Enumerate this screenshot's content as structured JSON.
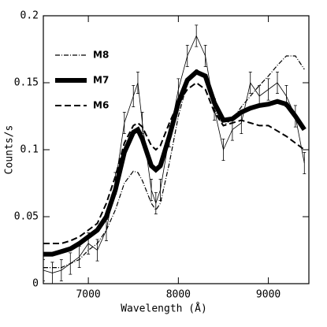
{
  "chart_data": {
    "type": "line",
    "xlabel": "Wavelength (Å)",
    "ylabel": "Counts/s",
    "xlim": [
      6500,
      9450
    ],
    "xticks": [
      7000,
      8000,
      9000
    ],
    "ylim": [
      0,
      0.2
    ],
    "yticks": [
      0,
      0.05,
      0.1,
      0.15,
      0.2
    ],
    "legend": "upper left",
    "x": [
      6500,
      6600,
      6700,
      6800,
      6900,
      7000,
      7100,
      7200,
      7300,
      7400,
      7500,
      7550,
      7600,
      7700,
      7750,
      7800,
      7900,
      8000,
      8100,
      8200,
      8300,
      8400,
      8500,
      8600,
      8700,
      8800,
      8900,
      9000,
      9100,
      9200,
      9300,
      9400
    ],
    "series": [
      {
        "color": "#000000",
        "style": "points",
        "values": [
          0.01,
          0.008,
          0.01,
          0.015,
          0.02,
          0.03,
          0.025,
          0.04,
          0.075,
          0.12,
          0.14,
          0.15,
          0.12,
          0.07,
          0.06,
          0.07,
          0.11,
          0.145,
          0.17,
          0.185,
          0.17,
          0.13,
          0.1,
          0.115,
          0.12,
          0.15,
          0.14,
          0.145,
          0.15,
          0.14,
          0.125,
          0.09
        ],
        "errors": [
          0.008,
          0.008,
          0.008,
          0.008,
          0.008,
          0.008,
          0.008,
          0.008,
          0.008,
          0.008,
          0.008,
          0.008,
          0.008,
          0.008,
          0.008,
          0.008,
          0.008,
          0.008,
          0.008,
          0.008,
          0.008,
          0.008,
          0.008,
          0.008,
          0.008,
          0.008,
          0.008,
          0.008,
          0.008,
          0.008,
          0.008,
          0.008
        ]
      },
      {
        "name": "M8",
        "color": "#000000",
        "style": "dashdot",
        "values": [
          0.012,
          0.012,
          0.012,
          0.015,
          0.018,
          0.025,
          0.03,
          0.04,
          0.055,
          0.075,
          0.084,
          0.083,
          0.077,
          0.06,
          0.055,
          0.06,
          0.09,
          0.125,
          0.15,
          0.16,
          0.155,
          0.13,
          0.118,
          0.123,
          0.132,
          0.14,
          0.148,
          0.155,
          0.163,
          0.17,
          0.17,
          0.16
        ]
      },
      {
        "name": "M7",
        "color": "#000000",
        "style": "thick",
        "values": [
          0.022,
          0.022,
          0.024,
          0.026,
          0.03,
          0.035,
          0.04,
          0.05,
          0.07,
          0.098,
          0.113,
          0.115,
          0.108,
          0.088,
          0.085,
          0.088,
          0.11,
          0.135,
          0.152,
          0.158,
          0.155,
          0.135,
          0.122,
          0.123,
          0.128,
          0.131,
          0.133,
          0.134,
          0.136,
          0.134,
          0.125,
          0.115
        ]
      },
      {
        "name": "M6",
        "color": "#000000",
        "style": "dashed",
        "values": [
          0.03,
          0.03,
          0.03,
          0.032,
          0.035,
          0.04,
          0.045,
          0.06,
          0.08,
          0.105,
          0.118,
          0.12,
          0.117,
          0.103,
          0.1,
          0.103,
          0.12,
          0.135,
          0.145,
          0.15,
          0.145,
          0.128,
          0.118,
          0.12,
          0.122,
          0.12,
          0.118,
          0.118,
          0.114,
          0.11,
          0.105,
          0.1
        ]
      }
    ]
  }
}
